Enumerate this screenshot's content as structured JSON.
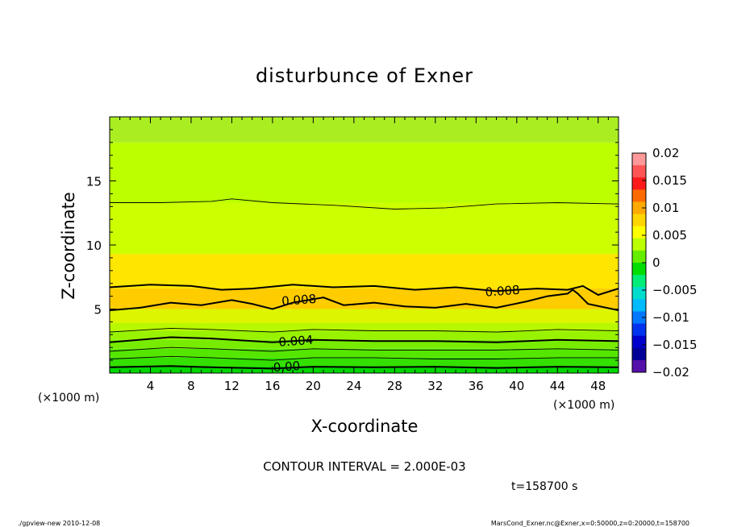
{
  "chart_data": {
    "type": "heatmap",
    "title": "disturbunce of Exner",
    "xlabel": "X-coordinate",
    "ylabel": "Z-coordinate",
    "x_unit": "(×1000 m)",
    "y_unit": "(×1000 m)",
    "xlim": [
      0,
      50
    ],
    "ylim": [
      0,
      20
    ],
    "x_ticks": [
      4,
      8,
      12,
      16,
      20,
      24,
      28,
      32,
      36,
      40,
      44,
      48
    ],
    "x_ticklabels": [
      "4",
      "8",
      "12",
      "16",
      "20",
      "24",
      "28",
      "32",
      "36",
      "40",
      "44",
      "48"
    ],
    "y_ticks": [
      5,
      10,
      15
    ],
    "y_ticklabels": [
      "5",
      "10",
      "15"
    ],
    "colorbar": {
      "min": -0.02,
      "max": 0.02,
      "ticks": [
        0.02,
        0.015,
        0.01,
        0.005,
        0,
        -0.005,
        -0.01,
        -0.015,
        -0.02
      ],
      "ticklabels": [
        "0.02",
        "0.015",
        "0.01",
        "0.005",
        "0",
        "−0.005",
        "−0.01",
        "−0.015",
        "−0.02"
      ],
      "colors": [
        "#ff9999",
        "#ff5555",
        "#ff1a1a",
        "#ff6a00",
        "#ffaa00",
        "#ffd500",
        "#ffff00",
        "#bbff00",
        "#66ee00",
        "#00dd00",
        "#00ee77",
        "#00ddcc",
        "#00bbff",
        "#0077ff",
        "#0033ee",
        "#0000cc",
        "#000099",
        "#5511aa"
      ]
    },
    "contour_interval_text": "CONTOUR INTERVAL = 2.000E-03",
    "time_text": "t=158700 s",
    "contour_labels": [
      {
        "text": "0.008",
        "x": 18.6,
        "z": 5.7
      },
      {
        "text": "0.008",
        "x": 38.6,
        "z": 6.4
      },
      {
        "text": "0.004",
        "x": 18.3,
        "z": 2.5
      },
      {
        "text": "0.00",
        "x": 17.4,
        "z": 0.5
      }
    ],
    "layers": [
      {
        "z0": 0.0,
        "z1": 0.5,
        "color": "#00d600"
      },
      {
        "z0": 0.5,
        "z1": 1.2,
        "color": "#33e000"
      },
      {
        "z0": 1.2,
        "z1": 1.9,
        "color": "#55e600"
      },
      {
        "z0": 1.9,
        "z1": 2.6,
        "color": "#77ec00"
      },
      {
        "z0": 2.6,
        "z1": 3.3,
        "color": "#99f200"
      },
      {
        "z0": 3.3,
        "z1": 3.9,
        "color": "#b8f800"
      },
      {
        "z0": 3.9,
        "z1": 5.0,
        "color": "#ddf500"
      },
      {
        "z0": 5.0,
        "z1": 6.6,
        "color": "#ffcc00"
      },
      {
        "z0": 6.6,
        "z1": 9.3,
        "color": "#ffe600"
      },
      {
        "z0": 9.3,
        "z1": 13.3,
        "color": "#ccff00"
      },
      {
        "z0": 13.3,
        "z1": 18.0,
        "color": "#bbff00"
      },
      {
        "z0": 18.0,
        "z1": 20.0,
        "color": "#aaee22"
      }
    ],
    "contours": [
      {
        "level": "0.000",
        "bold": true,
        "points": [
          [
            0,
            0.45
          ],
          [
            6,
            0.55
          ],
          [
            10,
            0.45
          ],
          [
            16,
            0.35
          ],
          [
            20,
            0.5
          ],
          [
            26,
            0.45
          ],
          [
            32,
            0.5
          ],
          [
            38,
            0.4
          ],
          [
            44,
            0.5
          ],
          [
            50,
            0.45
          ]
        ]
      },
      {
        "level": "0.002",
        "bold": false,
        "points": [
          [
            0,
            1.1
          ],
          [
            6,
            1.3
          ],
          [
            10,
            1.2
          ],
          [
            16,
            1.0
          ],
          [
            20,
            1.2
          ],
          [
            26,
            1.2
          ],
          [
            32,
            1.1
          ],
          [
            38,
            1.1
          ],
          [
            44,
            1.2
          ],
          [
            50,
            1.2
          ]
        ]
      },
      {
        "level": "0.003",
        "bold": false,
        "points": [
          [
            0,
            1.7
          ],
          [
            6,
            2.0
          ],
          [
            10,
            1.9
          ],
          [
            16,
            1.7
          ],
          [
            20,
            1.9
          ],
          [
            26,
            1.8
          ],
          [
            32,
            1.8
          ],
          [
            38,
            1.8
          ],
          [
            44,
            1.9
          ],
          [
            50,
            1.8
          ]
        ]
      },
      {
        "level": "0.004",
        "bold": true,
        "points": [
          [
            0,
            2.4
          ],
          [
            6,
            2.8
          ],
          [
            10,
            2.7
          ],
          [
            16,
            2.4
          ],
          [
            20,
            2.6
          ],
          [
            26,
            2.5
          ],
          [
            32,
            2.5
          ],
          [
            38,
            2.4
          ],
          [
            44,
            2.6
          ],
          [
            50,
            2.5
          ]
        ]
      },
      {
        "level": "0.005",
        "bold": false,
        "points": [
          [
            0,
            3.2
          ],
          [
            6,
            3.5
          ],
          [
            10,
            3.4
          ],
          [
            16,
            3.2
          ],
          [
            20,
            3.4
          ],
          [
            26,
            3.3
          ],
          [
            32,
            3.3
          ],
          [
            38,
            3.2
          ],
          [
            44,
            3.4
          ],
          [
            50,
            3.3
          ]
        ]
      },
      {
        "level": "0.008",
        "bold": true,
        "points": [
          [
            0,
            4.9
          ],
          [
            3,
            5.1
          ],
          [
            6,
            5.5
          ],
          [
            9,
            5.3
          ],
          [
            12,
            5.7
          ],
          [
            14,
            5.4
          ],
          [
            16,
            5.0
          ],
          [
            18,
            5.5
          ],
          [
            21,
            5.9
          ],
          [
            23,
            5.3
          ],
          [
            26,
            5.5
          ],
          [
            29,
            5.2
          ],
          [
            32,
            5.1
          ],
          [
            35,
            5.4
          ],
          [
            38,
            5.1
          ],
          [
            41,
            5.6
          ],
          [
            43,
            6.0
          ],
          [
            45,
            6.2
          ],
          [
            45.5,
            6.5
          ],
          [
            46,
            6.2
          ],
          [
            47,
            5.4
          ],
          [
            50,
            4.9
          ]
        ]
      },
      {
        "level": "0.008",
        "bold": true,
        "points": [
          [
            0,
            6.7
          ],
          [
            4,
            6.9
          ],
          [
            8,
            6.8
          ],
          [
            11,
            6.5
          ],
          [
            14,
            6.6
          ],
          [
            18,
            6.9
          ],
          [
            22,
            6.7
          ],
          [
            26,
            6.8
          ],
          [
            30,
            6.5
          ],
          [
            34,
            6.7
          ],
          [
            38,
            6.4
          ],
          [
            42,
            6.6
          ],
          [
            45,
            6.5
          ],
          [
            46.5,
            6.8
          ],
          [
            48,
            6.1
          ],
          [
            50,
            6.6
          ]
        ]
      },
      {
        "level": "0.009",
        "bold": false,
        "points": [
          [
            0,
            13.3
          ],
          [
            5,
            13.3
          ],
          [
            10,
            13.4
          ],
          [
            12,
            13.6
          ],
          [
            16,
            13.3
          ],
          [
            22,
            13.1
          ],
          [
            28,
            12.8
          ],
          [
            33,
            12.9
          ],
          [
            38,
            13.2
          ],
          [
            44,
            13.3
          ],
          [
            50,
            13.2
          ]
        ]
      }
    ]
  },
  "footer": {
    "left": "./gpview-new  2010-12-08",
    "right": "MarsCond_Exner.nc@Exner,x=0:50000,z=0:20000,t=158700"
  }
}
